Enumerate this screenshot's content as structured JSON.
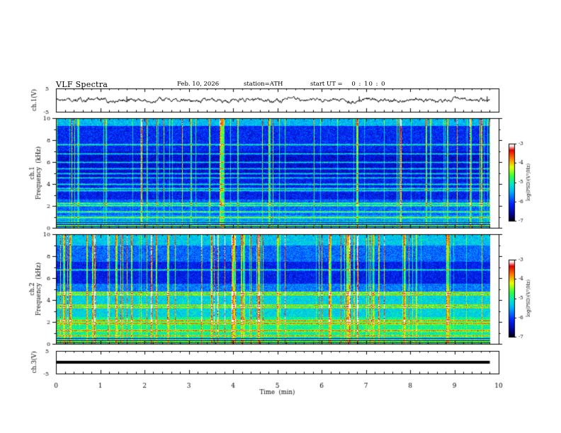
{
  "header": {
    "title": "VLF  Spectra",
    "date": "Feb. 10, 2026",
    "station": "station=ATH",
    "start_label": "start  UT  =",
    "start_value": "0 : 10 : 0"
  },
  "colors": {
    "trace": "#000000",
    "axis": "#000000",
    "colormap": [
      "#000000",
      "#00007a",
      "#0020ff",
      "#00b0ff",
      "#00e8c8",
      "#30ff40",
      "#e8ff00",
      "#ff7000",
      "#e00000",
      "#ffd8d8",
      "#ffffff"
    ]
  },
  "chart_data": [
    {
      "type": "line",
      "name": "ch1-waveform",
      "ylabel": "ch.1(V)",
      "ylim": [
        -5,
        5
      ],
      "yticks": [
        5,
        -5
      ],
      "xlim": [
        0,
        10
      ],
      "trace_mean": 0.0,
      "trace_amplitude": 0.6,
      "data_end_min": 9.8
    },
    {
      "type": "heatmap",
      "name": "ch1-spectrogram",
      "ylabel": "ch.1",
      "ylabel2": "Frequency  (kHz)",
      "ylim": [
        0,
        10
      ],
      "yticks": [
        0,
        2,
        4,
        6,
        8,
        10
      ],
      "xlim": [
        0,
        10
      ],
      "data_end_min": 9.8,
      "colorbar": {
        "label": "log(PSD)(V²/Hz)",
        "range": [
          -7,
          -3
        ],
        "ticks": [
          -3,
          -4,
          -5,
          -6,
          -7
        ]
      },
      "spectral_lines_khz": [
        0.1,
        0.25,
        0.5,
        1.0,
        1.5,
        2.05,
        2.25,
        3.4,
        3.6,
        4.0,
        4.6,
        5.0,
        5.4,
        6.0,
        6.8,
        7.6
      ]
    },
    {
      "type": "heatmap",
      "name": "ch2-spectrogram",
      "ylabel": "ch.2",
      "ylabel2": "Frequency  (kHz)",
      "ylim": [
        0,
        10
      ],
      "yticks": [
        0,
        2,
        4,
        6,
        8,
        10
      ],
      "xlim": [
        0,
        10
      ],
      "data_end_min": 9.8,
      "colorbar": {
        "label": "log(PSD)(V²/Hz)",
        "range": [
          -7,
          -3
        ],
        "ticks": [
          -3,
          -4,
          -5,
          -6,
          -7
        ]
      },
      "spectral_lines_khz": [
        0.1,
        0.3,
        0.8,
        1.2,
        1.9,
        2.1,
        3.35,
        3.55,
        4.5,
        4.7,
        6.8
      ]
    },
    {
      "type": "line",
      "name": "ch3-waveform",
      "ylabel": "ch.3(V)",
      "ylim": [
        -5,
        5
      ],
      "yticks": [
        5,
        -5
      ],
      "xlim": [
        0,
        10
      ],
      "trace_mean": 0.0,
      "trace_amplitude": 0.3,
      "data_end_min": 9.8
    }
  ],
  "xaxis": {
    "label": "Time  (min)",
    "ticks": [
      0,
      1,
      2,
      3,
      4,
      5,
      6,
      7,
      8,
      9,
      10
    ]
  }
}
